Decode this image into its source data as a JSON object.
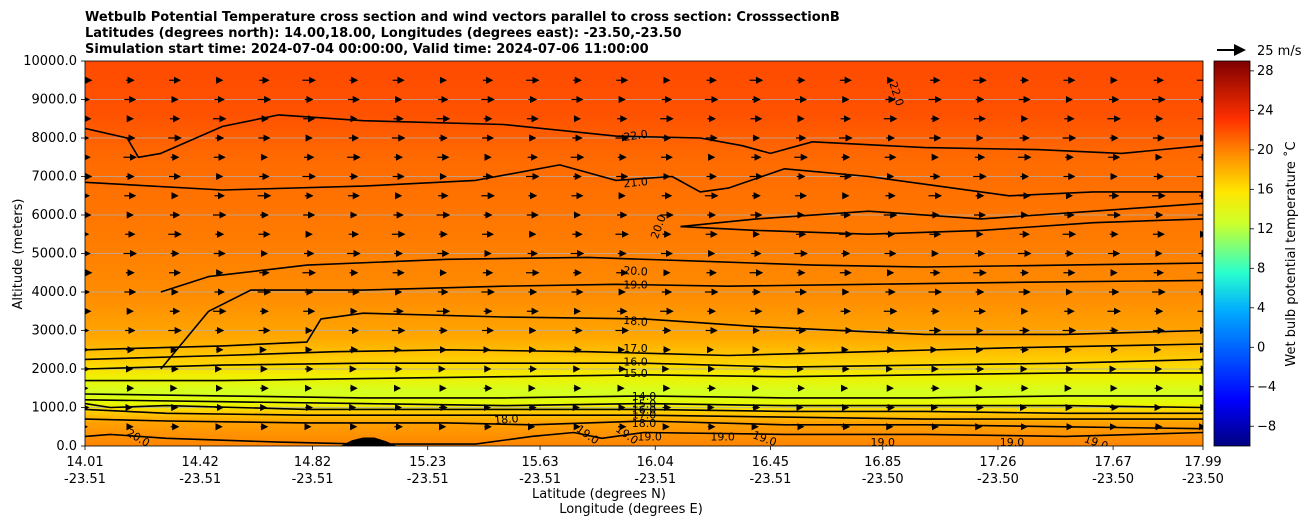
{
  "chart_data": {
    "type": "contour",
    "title_lines": [
      "Wetbulb Potential Temperature cross section and wind vectors parallel to cross section: CrosssectionB",
      "Latitudes (degrees north): 14.00,18.00, Longitudes (degrees east): -23.50,-23.50",
      "Simulation start time: 2024-07-04 00:00:00, Valid time: 2024-07-06 11:00:00"
    ],
    "ylabel": "Altitude (meters)",
    "xlabel_lat": "Latitude (degrees N)",
    "xlabel_lon": "Longitude (degrees E)",
    "ylim": [
      0,
      10000
    ],
    "y_ticks": [
      "0.0",
      "1000.0",
      "2000.0",
      "3000.0",
      "4000.0",
      "5000.0",
      "6000.0",
      "7000.0",
      "8000.0",
      "9000.0",
      "10000.0"
    ],
    "y_tick_values": [
      0,
      1000,
      2000,
      3000,
      4000,
      5000,
      6000,
      7000,
      8000,
      9000,
      10000
    ],
    "xlim": [
      14.01,
      17.99
    ],
    "x_lat_ticks": [
      "14.01",
      "14.42",
      "14.82",
      "15.23",
      "15.63",
      "16.04",
      "16.45",
      "16.85",
      "17.26",
      "17.67",
      "17.99"
    ],
    "x_lat_values": [
      14.01,
      14.42,
      14.82,
      15.23,
      15.63,
      16.04,
      16.45,
      16.85,
      17.26,
      17.67,
      17.99
    ],
    "x_lon_ticks": [
      "-23.51",
      "-23.51",
      "-23.51",
      "-23.51",
      "-23.51",
      "-23.51",
      "-23.51",
      "-23.50",
      "-23.50",
      "-23.50",
      "-23.50"
    ],
    "colorbar": {
      "label": "Wet bulb potential temperature ˚C",
      "ticks": [
        "−8",
        "−4",
        "0",
        "4",
        "8",
        "12",
        "16",
        "20",
        "24",
        "28"
      ],
      "tick_values": [
        -8,
        -4,
        0,
        4,
        8,
        12,
        16,
        20,
        24,
        28
      ],
      "range": [
        -10,
        29
      ]
    },
    "wind_key_label": "25 m/s",
    "contours": [
      {
        "label": "22.0",
        "level": 22,
        "x": [
          14.01,
          14.16,
          14.2,
          14.28,
          14.5,
          14.7,
          15.0,
          15.5,
          15.9,
          16.2,
          16.35,
          16.45,
          16.6,
          17.0,
          17.4,
          17.7,
          17.99
        ],
        "y": [
          8250,
          8000,
          7500,
          7600,
          8300,
          8600,
          8450,
          8350,
          8050,
          8000,
          7800,
          7600,
          7900,
          7750,
          7700,
          7600,
          7800
        ]
      },
      {
        "label": "21.0",
        "level": 21,
        "x": [
          14.01,
          14.5,
          15.0,
          15.4,
          15.7,
          15.9,
          16.1,
          16.2,
          16.3,
          16.5,
          16.8,
          17.1,
          17.3,
          17.6,
          17.99
        ],
        "y": [
          6850,
          6650,
          6750,
          6900,
          7300,
          6900,
          7000,
          6600,
          6700,
          7200,
          7000,
          6700,
          6500,
          6600,
          6600
        ]
      },
      {
        "label": "20.0",
        "level": 20,
        "x": [
          16.13,
          16.4,
          16.8,
          17.2,
          17.6,
          17.99
        ],
        "y": [
          5700,
          5900,
          6100,
          5900,
          6100,
          6300
        ]
      },
      {
        "label": "20.0",
        "level": 20,
        "x": [
          16.13,
          16.4,
          16.8,
          17.2,
          17.6,
          17.99
        ],
        "y": [
          5700,
          5600,
          5500,
          5600,
          5800,
          5900
        ]
      },
      {
        "label": "20.0",
        "level": 20,
        "x": [
          14.28,
          14.45,
          14.8,
          15.3,
          15.8,
          16.2,
          16.6,
          17.0,
          17.5,
          17.99
        ],
        "y": [
          4000,
          4400,
          4700,
          4850,
          4900,
          4800,
          4700,
          4650,
          4700,
          4750
        ]
      },
      {
        "label": "19.0",
        "level": 19,
        "x": [
          14.28,
          14.45,
          14.6,
          15.0,
          15.5,
          15.9,
          16.3,
          16.8,
          17.3,
          17.99
        ],
        "y": [
          2000,
          3500,
          4050,
          4050,
          4150,
          4200,
          4150,
          4200,
          4250,
          4300
        ]
      },
      {
        "label": "18.0",
        "level": 18,
        "x": [
          14.01,
          14.5,
          14.8,
          14.85,
          15.0,
          15.5,
          16.0,
          16.4,
          17.0,
          17.5,
          17.99
        ],
        "y": [
          2500,
          2600,
          2700,
          3300,
          3450,
          3350,
          3300,
          3100,
          2900,
          2900,
          3000
        ]
      },
      {
        "label": "17.0",
        "level": 17,
        "x": [
          14.01,
          14.5,
          14.9,
          15.3,
          15.8,
          16.3,
          16.8,
          17.3,
          17.99
        ],
        "y": [
          2250,
          2350,
          2450,
          2500,
          2450,
          2350,
          2450,
          2550,
          2650
        ]
      },
      {
        "label": "16.0",
        "level": 16,
        "x": [
          14.01,
          14.5,
          15.0,
          15.5,
          16.0,
          16.5,
          17.0,
          17.5,
          17.99
        ],
        "y": [
          2000,
          2100,
          2150,
          2150,
          2150,
          2050,
          2100,
          2150,
          2250
        ]
      },
      {
        "label": "15.0",
        "level": 15,
        "x": [
          14.01,
          14.5,
          15.0,
          15.5,
          16.0,
          16.5,
          17.0,
          17.5,
          17.99
        ],
        "y": [
          1700,
          1700,
          1750,
          1800,
          1850,
          1800,
          1850,
          1900,
          1900
        ]
      },
      {
        "label": "14.0",
        "level": 14,
        "x": [
          14.01,
          14.5,
          15.0,
          15.5,
          16.0,
          16.5,
          17.0,
          17.5,
          17.99
        ],
        "y": [
          1350,
          1300,
          1250,
          1250,
          1300,
          1250,
          1250,
          1300,
          1300
        ]
      },
      {
        "label": "15.0",
        "level": 15,
        "x": [
          14.01,
          14.5,
          15.0,
          15.5,
          16.0,
          16.5,
          17.0,
          17.5,
          17.99
        ],
        "y": [
          1200,
          1150,
          1100,
          1050,
          1100,
          1050,
          1050,
          1050,
          1000
        ]
      },
      {
        "label": "16.0",
        "level": 16,
        "x": [
          14.01,
          14.1,
          14.3,
          14.8,
          15.5,
          16.0,
          16.5,
          17.0,
          17.5,
          17.99
        ],
        "y": [
          1100,
          1000,
          1050,
          950,
          950,
          950,
          900,
          900,
          850,
          850
        ]
      },
      {
        "label": "17.0",
        "level": 17,
        "x": [
          14.01,
          14.3,
          14.8,
          15.5,
          16.0,
          16.5,
          17.0,
          17.5,
          17.99
        ],
        "y": [
          950,
          850,
          800,
          800,
          800,
          750,
          700,
          700,
          700
        ]
      },
      {
        "label": "18.0",
        "level": 18,
        "x": [
          14.01,
          14.3,
          14.8,
          15.3,
          15.6,
          16.0,
          16.5,
          17.0,
          17.5,
          17.99
        ],
        "y": [
          700,
          650,
          600,
          600,
          550,
          650,
          550,
          550,
          500,
          450
        ]
      },
      {
        "label": "19.0",
        "level": 19,
        "x": [
          15.6,
          15.75,
          15.85,
          16.0,
          16.5,
          17.0,
          17.5,
          17.99
        ],
        "y": [
          250,
          350,
          200,
          350,
          300,
          300,
          250,
          350
        ]
      },
      {
        "label": "20.0",
        "level": 20,
        "x": [
          14.01,
          14.1,
          14.3,
          14.7,
          15.0,
          15.4,
          15.6
        ],
        "y": [
          250,
          300,
          200,
          100,
          50,
          50,
          250
        ]
      }
    ],
    "contour_labels": [
      {
        "text": "22.0",
        "x": 15.97,
        "y": 8070,
        "rot": -8
      },
      {
        "text": "22.0",
        "x": 16.9,
        "y": 9150,
        "rot": 72
      },
      {
        "text": "21.0",
        "x": 15.97,
        "y": 6850,
        "rot": -6
      },
      {
        "text": "20.0",
        "x": 16.05,
        "y": 5700,
        "rot": -70
      },
      {
        "text": "20.0",
        "x": 15.97,
        "y": 4550,
        "rot": 4
      },
      {
        "text": "19.0",
        "x": 15.97,
        "y": 4200,
        "rot": 0
      },
      {
        "text": "18.0",
        "x": 15.97,
        "y": 3250,
        "rot": 5
      },
      {
        "text": "17.0",
        "x": 15.97,
        "y": 2550,
        "rot": 0
      },
      {
        "text": "16.0",
        "x": 15.97,
        "y": 2200,
        "rot": 0
      },
      {
        "text": "15.0",
        "x": 15.97,
        "y": 1900,
        "rot": 0
      },
      {
        "text": "14.0",
        "x": 16.0,
        "y": 1300,
        "rot": 0
      },
      {
        "text": "15.0",
        "x": 16.0,
        "y": 1100,
        "rot": 0
      },
      {
        "text": "16.0",
        "x": 16.0,
        "y": 950,
        "rot": 0
      },
      {
        "text": "17.0",
        "x": 16.0,
        "y": 820,
        "rot": 0
      },
      {
        "text": "18.0",
        "x": 16.0,
        "y": 600,
        "rot": 0
      },
      {
        "text": "18.0",
        "x": 15.51,
        "y": 700,
        "rot": -5
      },
      {
        "text": "20.0",
        "x": 14.2,
        "y": 220,
        "rot": 30
      },
      {
        "text": "19.0",
        "x": 15.8,
        "y": 300,
        "rot": 35
      },
      {
        "text": "19.0",
        "x": 15.94,
        "y": 300,
        "rot": 35
      },
      {
        "text": "19.0",
        "x": 16.02,
        "y": 250,
        "rot": 0
      },
      {
        "text": "19.0",
        "x": 16.28,
        "y": 250,
        "rot": 0
      },
      {
        "text": "19.0",
        "x": 16.43,
        "y": 200,
        "rot": 20
      },
      {
        "text": "19.0",
        "x": 16.85,
        "y": 100,
        "rot": 0
      },
      {
        "text": "19.0",
        "x": 17.31,
        "y": 100,
        "rot": 0
      },
      {
        "text": "19.0",
        "x": 17.61,
        "y": 100,
        "rot": 20
      }
    ],
    "terrain": {
      "x": [
        14.92,
        14.96,
        15.0,
        15.04,
        15.08,
        15.12
      ],
      "y": [
        0,
        150,
        220,
        220,
        130,
        0
      ]
    },
    "wind_vectors": {
      "x_range": [
        14.01,
        17.99
      ],
      "heights_m": [
        500,
        1000,
        1500,
        2000,
        2500,
        3000,
        3500,
        4000,
        4500,
        5000,
        5500,
        6000,
        6500,
        7000,
        7500,
        8000,
        8500,
        9000,
        9500
      ],
      "ncols": 26,
      "typical_speed_ms": 10
    }
  }
}
